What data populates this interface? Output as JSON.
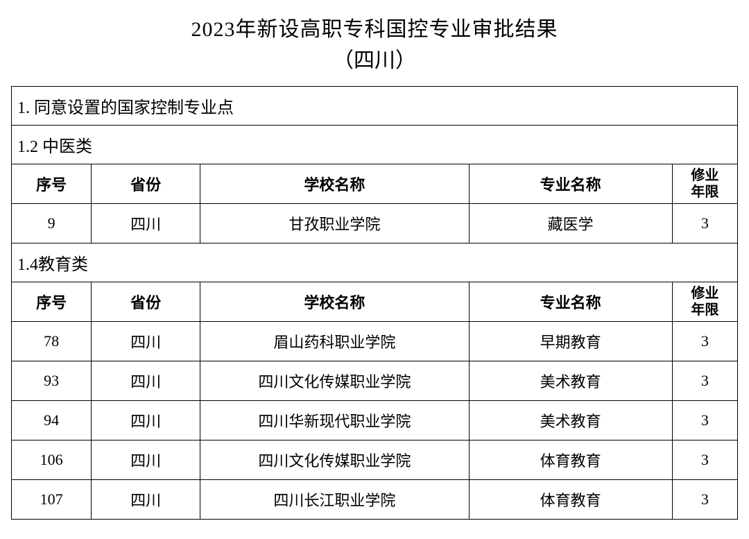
{
  "title": {
    "line1": "2023年新设高职专科国控专业审批结果",
    "line2": "（四川）"
  },
  "section1_header": "1. 同意设置的国家控制专业点",
  "columns": {
    "seq": "序号",
    "province": "省份",
    "school": "学校名称",
    "major": "专业名称",
    "years": "修业年限"
  },
  "groups": [
    {
      "header": "1.2 中医类",
      "rows": [
        {
          "seq": "9",
          "province": "四川",
          "school": "甘孜职业学院",
          "major": "藏医学",
          "years": "3"
        }
      ]
    },
    {
      "header": "1.4教育类",
      "rows": [
        {
          "seq": "78",
          "province": "四川",
          "school": "眉山药科职业学院",
          "major": "早期教育",
          "years": "3"
        },
        {
          "seq": "93",
          "province": "四川",
          "school": "四川文化传媒职业学院",
          "major": "美术教育",
          "years": "3"
        },
        {
          "seq": "94",
          "province": "四川",
          "school": "四川华新现代职业学院",
          "major": "美术教育",
          "years": "3"
        },
        {
          "seq": "106",
          "province": "四川",
          "school": "四川文化传媒职业学院",
          "major": "体育教育",
          "years": "3"
        },
        {
          "seq": "107",
          "province": "四川",
          "school": "四川长江职业学院",
          "major": "体育教育",
          "years": "3"
        }
      ]
    }
  ],
  "styling": {
    "background_color": "#ffffff",
    "border_color": "#000000",
    "text_color": "#000000",
    "title_fontsize": 30,
    "header_fontsize": 24,
    "col_header_fontsize": 22,
    "data_fontsize": 22,
    "column_widths_pct": [
      11,
      15,
      37,
      28,
      9
    ],
    "font_family": "SimSun"
  }
}
